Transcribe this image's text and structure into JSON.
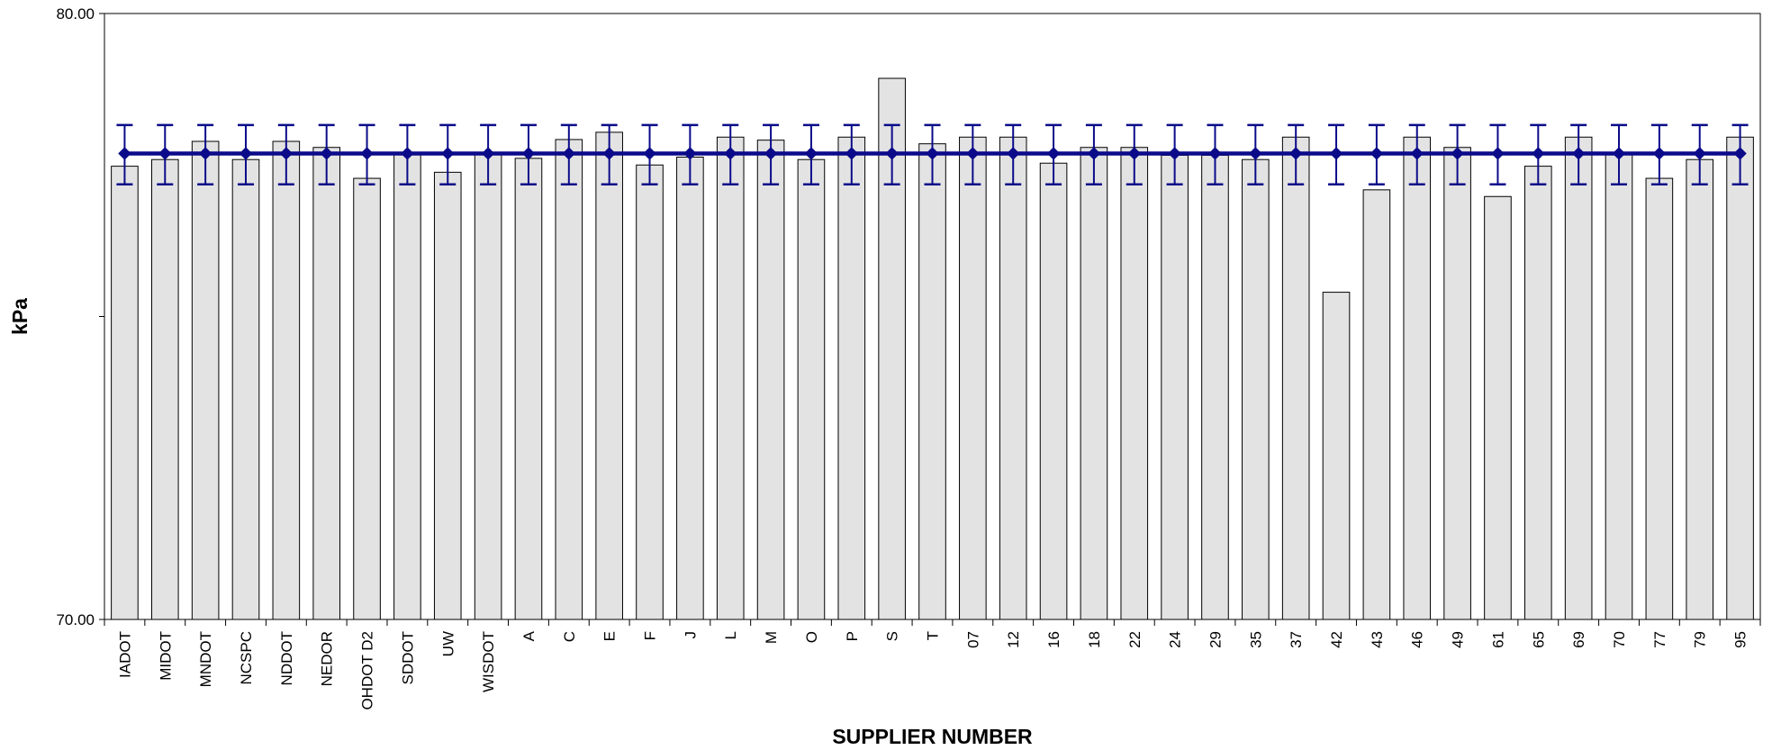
{
  "chart_data": {
    "type": "bar",
    "xlabel": "SUPPLIER NUMBER",
    "ylabel": "kPa",
    "ylim": [
      70,
      80
    ],
    "y_tick_labels": [
      "80.00",
      "",
      "70.00"
    ],
    "y_ticks": [
      80,
      75,
      70
    ],
    "grid": false,
    "legend": "none",
    "categories": [
      "IADOT",
      "MIDOT",
      "MNDOT",
      "NCSPC",
      "NDDOT",
      "NEDOR",
      "OHDOT D2",
      "SDDOT",
      "UW",
      "WISDOT",
      "A",
      "C",
      "E",
      "F",
      "J",
      "L",
      "M",
      "O",
      "P",
      "S",
      "T",
      "07",
      "12",
      "16",
      "18",
      "22",
      "24",
      "29",
      "35",
      "37",
      "42",
      "43",
      "46",
      "49",
      "61",
      "65",
      "69",
      "70",
      "77",
      "79",
      "95"
    ],
    "values": [
      77.48,
      77.59,
      77.89,
      77.59,
      77.89,
      77.79,
      77.28,
      77.69,
      77.38,
      77.69,
      77.61,
      77.92,
      78.04,
      77.5,
      77.63,
      77.96,
      77.91,
      77.59,
      77.96,
      78.93,
      77.85,
      77.96,
      77.96,
      77.53,
      77.79,
      77.79,
      77.66,
      77.66,
      77.59,
      77.96,
      75.4,
      77.09,
      77.96,
      77.79,
      76.98,
      77.48,
      77.96,
      77.69,
      77.28,
      77.59,
      77.96
    ],
    "mean_line": {
      "value": 77.69,
      "error_plus": 0.47,
      "error_minus": 0.51
    },
    "colors": {
      "bar_fill": "#e3e3e3",
      "bar_stroke": "#000000",
      "mean_line": "#0b0b8a"
    }
  }
}
